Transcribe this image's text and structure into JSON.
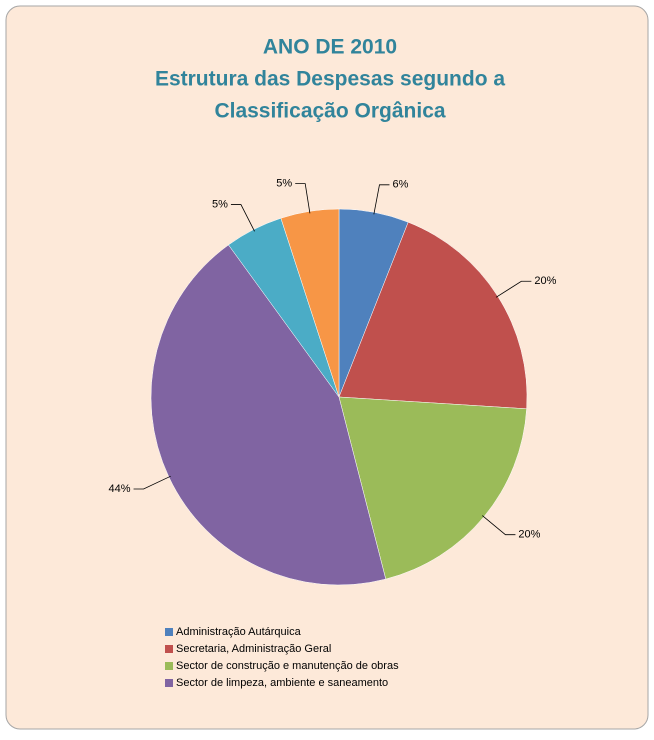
{
  "chart_data": {
    "type": "pie",
    "title": "ANO DE 2010",
    "subtitle": [
      "Estrutura das Despesas segundo a",
      "Classificação Orgânica"
    ],
    "categories": [
      "Administração Autárquica",
      "Secretaria, Administração Geral",
      "Sector de construção e manutenção de obras",
      "Sector de limpeza,  ambiente e saneamento",
      null,
      null
    ],
    "values": [
      6,
      20,
      20,
      44,
      5,
      5
    ],
    "value_labels": [
      "6%",
      "20%",
      "20%",
      "44%",
      "5%",
      "5%"
    ],
    "colors": [
      "#4f81bd",
      "#c0504d",
      "#9bbb59",
      "#8064a2",
      "#4bacc6",
      "#f79646"
    ],
    "legend": "bottom-left"
  }
}
